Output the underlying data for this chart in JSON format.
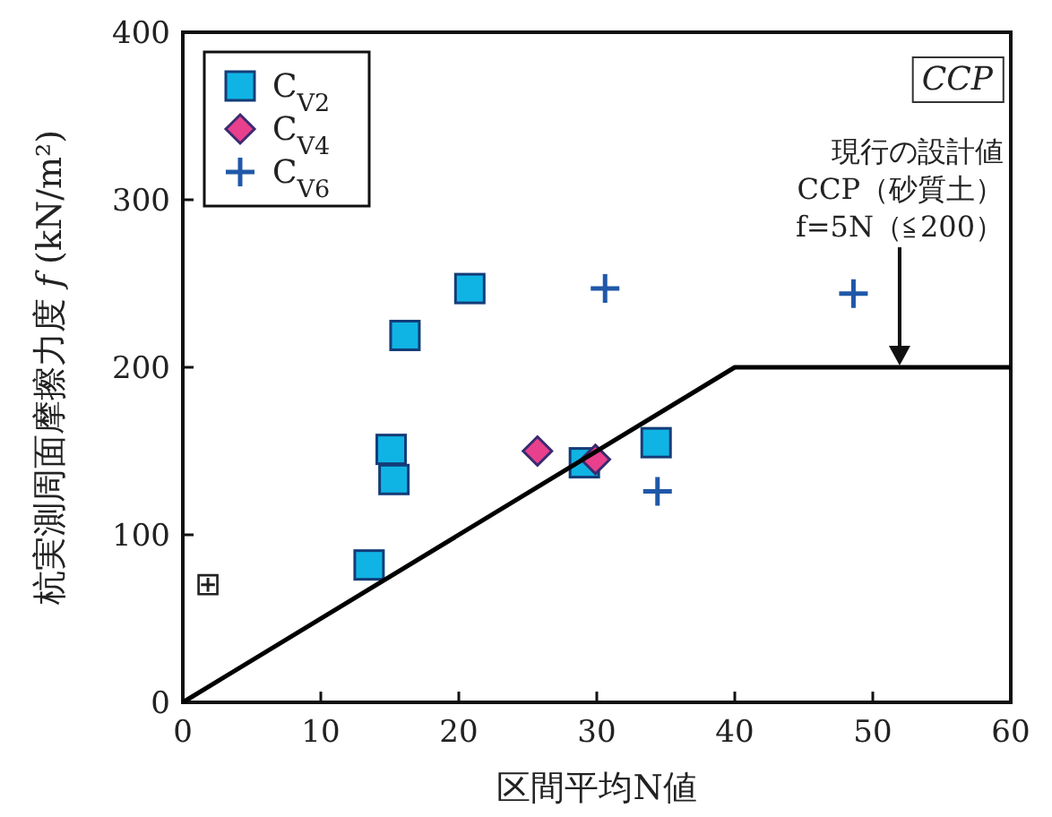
{
  "chart_data": {
    "type": "scatter",
    "xlabel": "区間平均N値",
    "ylabel": "杭実測周面摩擦力度 *f* (kN/m²)",
    "xlim": [
      0,
      60
    ],
    "ylim": [
      0,
      400
    ],
    "xticks": [
      0,
      10,
      20,
      30,
      40,
      50,
      60
    ],
    "yticks": [
      0,
      100,
      200,
      300,
      400
    ],
    "grid": false,
    "legend": "top left",
    "series": [
      {
        "name": "C$_{V2}$",
        "color": "#10b4e4",
        "marker": "square",
        "x": [
          20.8,
          16.1,
          15.1,
          15.3,
          13.5,
          29.1,
          34.3
        ],
        "values": [
          247,
          219,
          151,
          133,
          82,
          143,
          155
        ]
      },
      {
        "name": "C$_{V4}$",
        "color": "#e8408c",
        "marker": "diamond",
        "x": [
          25.7,
          29.9
        ],
        "values": [
          150,
          145
        ]
      },
      {
        "name": "C$_{V6}$",
        "color": "#2058a8",
        "marker": "cross",
        "x": [
          30.6,
          34.4,
          48.6
        ],
        "values": [
          247,
          126,
          244
        ]
      },
      {
        "type": "line",
        "color": "#000000",
        "marker": "none",
        "x": [
          0,
          40,
          60
        ],
        "values": [
          0,
          200,
          200
        ]
      }
    ],
    "annotations": [
      "*CCP*",
      "現行の設計値\nCCP（砂質土）\nf=5N（≦200）",
      "⊞"
    ]
  }
}
